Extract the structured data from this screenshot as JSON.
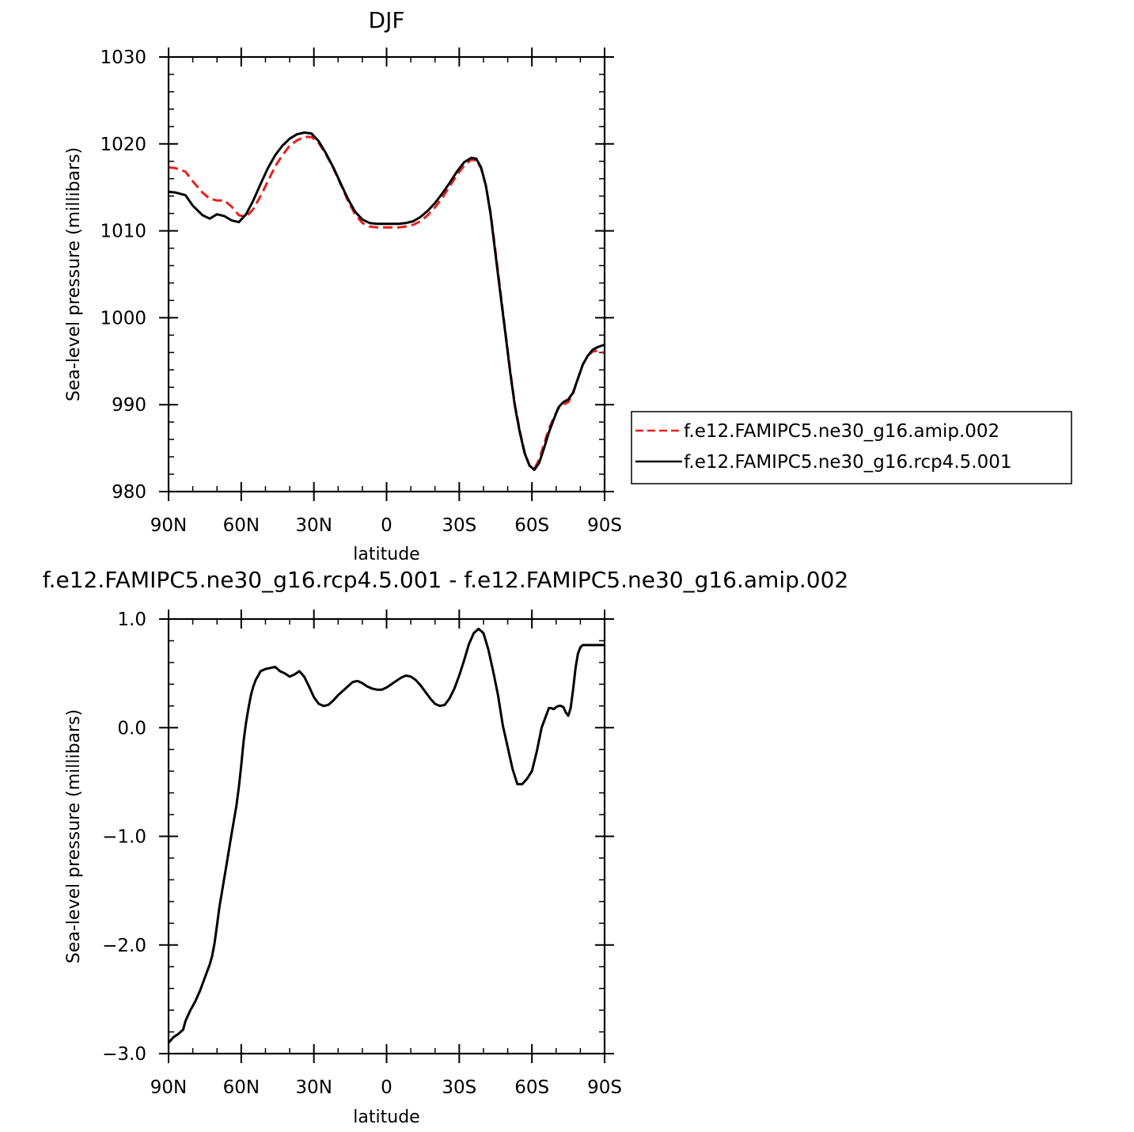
{
  "chart_data": [
    {
      "type": "line",
      "title": "DJF",
      "xlabel": "latitude",
      "ylabel": "Sea-level pressure (millibars)",
      "xlim": [
        90,
        -90
      ],
      "ylim": [
        980,
        1030
      ],
      "x_ticks": [
        {
          "value": 90,
          "label": "90N"
        },
        {
          "value": 60,
          "label": "60N"
        },
        {
          "value": 30,
          "label": "30N"
        },
        {
          "value": 0,
          "label": "0"
        },
        {
          "value": -30,
          "label": "30S"
        },
        {
          "value": -60,
          "label": "60S"
        },
        {
          "value": -90,
          "label": "90S"
        }
      ],
      "y_ticks": [
        {
          "value": 980,
          "label": "980"
        },
        {
          "value": 990,
          "label": "990"
        },
        {
          "value": 1000,
          "label": "1000"
        },
        {
          "value": 1010,
          "label": "1010"
        },
        {
          "value": 1020,
          "label": "1020"
        },
        {
          "value": 1030,
          "label": "1030"
        }
      ],
      "grid": false,
      "legend_position": "right",
      "series": [
        {
          "name": "f.e12.FAMIPC5.ne30_g16.amip.002",
          "color": "#e8201c",
          "dash": "dashed",
          "x": [
            90,
            87,
            83,
            80,
            76,
            73,
            70,
            67,
            64,
            61,
            58,
            55,
            52,
            49,
            46,
            43,
            40,
            37,
            34,
            31,
            28,
            25,
            22,
            19,
            16,
            13,
            10,
            7,
            4,
            1,
            -2,
            -5,
            -8,
            -11,
            -14,
            -17,
            -20,
            -23,
            -26,
            -29,
            -32,
            -35,
            -37,
            -39,
            -41,
            -43,
            -45,
            -47,
            -49,
            -51,
            -53,
            -55,
            -57,
            -59,
            -61,
            -63,
            -65,
            -67,
            -69,
            -71,
            -73,
            -75,
            -77,
            -79,
            -81,
            -83,
            -85,
            -87,
            -89,
            -90
          ],
          "y": [
            1017.3,
            1017.2,
            1016.8,
            1015.7,
            1014.4,
            1013.7,
            1013.5,
            1013.5,
            1012.8,
            1011.8,
            1011.6,
            1012.5,
            1014.0,
            1015.7,
            1017.4,
            1018.7,
            1019.8,
            1020.4,
            1020.8,
            1020.8,
            1020.1,
            1018.8,
            1017.2,
            1015.4,
            1013.5,
            1011.9,
            1010.9,
            1010.5,
            1010.4,
            1010.4,
            1010.4,
            1010.4,
            1010.5,
            1010.7,
            1011.1,
            1011.8,
            1012.7,
            1013.8,
            1015.1,
            1016.4,
            1017.5,
            1018.2,
            1018.1,
            1017.2,
            1015.2,
            1012.0,
            1007.5,
            1003.0,
            998.5,
            994.0,
            990.0,
            987.0,
            984.5,
            983.0,
            982.6,
            983.7,
            985.5,
            987.2,
            988.5,
            989.6,
            990.0,
            990.3,
            991.3,
            993.0,
            994.6,
            995.6,
            996.1,
            996.2,
            996.0,
            996.0
          ]
        },
        {
          "name": "f.e12.FAMIPC5.ne30_g16.rcp4.5.001",
          "color": "#000000",
          "dash": "solid",
          "x": [
            90,
            87,
            83,
            80,
            76,
            73,
            70,
            67,
            64,
            61,
            58,
            55,
            52,
            49,
            46,
            43,
            40,
            37,
            34,
            31,
            28,
            25,
            22,
            19,
            16,
            13,
            10,
            7,
            4,
            1,
            -2,
            -5,
            -8,
            -11,
            -14,
            -17,
            -20,
            -23,
            -26,
            -29,
            -32,
            -35,
            -37,
            -39,
            -41,
            -43,
            -45,
            -47,
            -49,
            -51,
            -53,
            -55,
            -57,
            -59,
            -61,
            -63,
            -65,
            -67,
            -69,
            -71,
            -73,
            -75,
            -77,
            -79,
            -81,
            -83,
            -85,
            -87,
            -89,
            -90
          ],
          "y": [
            1014.5,
            1014.4,
            1014.1,
            1012.9,
            1011.8,
            1011.4,
            1011.9,
            1011.7,
            1011.2,
            1011.0,
            1011.9,
            1013.5,
            1015.4,
            1017.2,
            1018.7,
            1019.8,
            1020.6,
            1021.1,
            1021.3,
            1021.2,
            1020.3,
            1018.9,
            1017.3,
            1015.5,
            1013.7,
            1012.2,
            1011.3,
            1010.9,
            1010.8,
            1010.8,
            1010.8,
            1010.8,
            1010.9,
            1011.1,
            1011.6,
            1012.3,
            1013.2,
            1014.3,
            1015.5,
            1016.8,
            1017.9,
            1018.4,
            1018.3,
            1017.3,
            1015.2,
            1011.8,
            1007.2,
            1002.7,
            998.3,
            993.8,
            989.8,
            986.8,
            984.4,
            983.0,
            982.5,
            983.3,
            985.0,
            986.8,
            988.3,
            989.7,
            990.3,
            990.6,
            991.4,
            993.0,
            994.6,
            995.6,
            996.3,
            996.6,
            996.8,
            996.9
          ]
        }
      ]
    },
    {
      "type": "line",
      "title": "f.e12.FAMIPC5.ne30_g16.rcp4.5.001 - f.e12.FAMIPC5.ne30_g16.amip.002",
      "xlabel": "latitude",
      "ylabel": "Sea-level pressure (millibars)",
      "xlim": [
        90,
        -90
      ],
      "ylim": [
        -3.0,
        1.0
      ],
      "x_ticks": [
        {
          "value": 90,
          "label": "90N"
        },
        {
          "value": 60,
          "label": "60N"
        },
        {
          "value": 30,
          "label": "30N"
        },
        {
          "value": 0,
          "label": "0"
        },
        {
          "value": -30,
          "label": "30S"
        },
        {
          "value": -60,
          "label": "60S"
        },
        {
          "value": -90,
          "label": "90S"
        }
      ],
      "y_ticks": [
        {
          "value": -3.0,
          "label": "−3.0"
        },
        {
          "value": -2.0,
          "label": "−2.0"
        },
        {
          "value": -1.0,
          "label": "−1.0"
        },
        {
          "value": 0.0,
          "label": "0.0"
        },
        {
          "value": 1.0,
          "label": "1.0"
        }
      ],
      "grid": false,
      "series": [
        {
          "color": "#000000",
          "dash": "solid",
          "x": [
            90,
            88,
            86,
            85,
            84,
            83,
            81,
            79,
            77,
            75,
            73,
            72,
            71,
            70,
            69,
            68,
            66,
            64,
            62,
            61,
            60,
            59,
            58,
            57,
            56,
            55,
            54,
            53,
            52,
            50,
            48,
            46,
            44,
            42,
            40,
            38,
            36,
            34,
            32,
            30,
            28,
            26,
            24,
            22,
            20,
            18,
            16,
            14,
            12,
            10,
            8,
            6,
            4,
            2,
            0,
            -2,
            -4,
            -6,
            -8,
            -10,
            -12,
            -14,
            -16,
            -18,
            -20,
            -22,
            -24,
            -26,
            -28,
            -30,
            -32,
            -34,
            -36,
            -38,
            -40,
            -42,
            -44,
            -46,
            -48,
            -50,
            -52,
            -54,
            -56,
            -58,
            -60,
            -62,
            -64,
            -66,
            -67,
            -68,
            -69,
            -70,
            -71,
            -72,
            -73,
            -74,
            -75,
            -76,
            -77,
            -78,
            -79,
            -80,
            -81,
            -82,
            -83,
            -84,
            -85,
            -86,
            -87,
            -88,
            -89,
            -90
          ],
          "y": [
            -2.9,
            -2.85,
            -2.82,
            -2.8,
            -2.78,
            -2.7,
            -2.6,
            -2.52,
            -2.42,
            -2.3,
            -2.18,
            -2.1,
            -1.98,
            -1.82,
            -1.65,
            -1.52,
            -1.25,
            -0.98,
            -0.72,
            -0.55,
            -0.35,
            -0.12,
            0.05,
            0.18,
            0.3,
            0.38,
            0.44,
            0.48,
            0.52,
            0.54,
            0.55,
            0.56,
            0.52,
            0.5,
            0.47,
            0.49,
            0.52,
            0.47,
            0.38,
            0.28,
            0.22,
            0.2,
            0.21,
            0.25,
            0.3,
            0.34,
            0.38,
            0.42,
            0.43,
            0.41,
            0.38,
            0.36,
            0.35,
            0.35,
            0.37,
            0.4,
            0.43,
            0.46,
            0.48,
            0.47,
            0.44,
            0.39,
            0.33,
            0.27,
            0.22,
            0.2,
            0.21,
            0.27,
            0.36,
            0.48,
            0.62,
            0.77,
            0.87,
            0.91,
            0.87,
            0.72,
            0.52,
            0.3,
            0.02,
            -0.18,
            -0.38,
            -0.52,
            -0.52,
            -0.47,
            -0.4,
            -0.22,
            0.0,
            0.12,
            0.18,
            0.18,
            0.17,
            0.19,
            0.2,
            0.2,
            0.19,
            0.14,
            0.11,
            0.18,
            0.35,
            0.55,
            0.68,
            0.74,
            0.76,
            0.76,
            0.76,
            0.76,
            0.76,
            0.76,
            0.76,
            0.76,
            0.76,
            0.76
          ]
        }
      ]
    }
  ]
}
